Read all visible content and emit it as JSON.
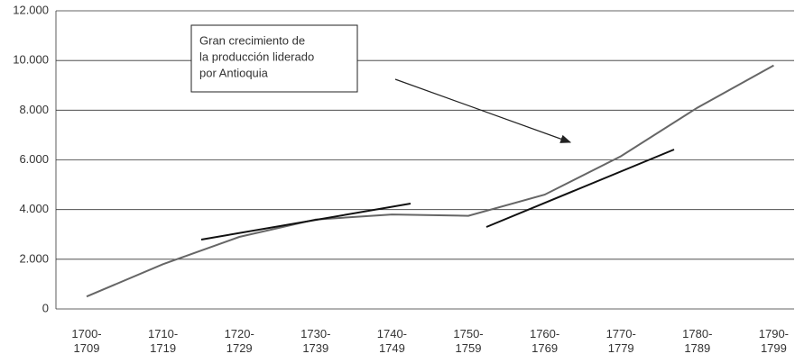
{
  "chart_data": {
    "type": "line",
    "categories": [
      "1700-\n1709",
      "1710-\n1719",
      "1720-\n1729",
      "1730-\n1739",
      "1740-\n1749",
      "1750-\n1759",
      "1760-\n1769",
      "1770-\n1779",
      "1780-\n1789",
      "1790-\n1799"
    ],
    "series": [
      {
        "name": null,
        "color": "#666666",
        "values": [
          500,
          1800,
          2900,
          3600,
          3800,
          3750,
          4600,
          6150,
          8100,
          9800
        ]
      }
    ],
    "ylim": [
      0,
      12000
    ],
    "yticks": [
      0,
      {
        "value": 2000,
        "label": "2.000"
      },
      {
        "value": 4000,
        "label": "4.000"
      },
      {
        "value": 6000,
        "label": "6.000"
      },
      {
        "value": 8000,
        "label": "8.000"
      },
      {
        "value": 10000,
        "label": "10.000"
      },
      {
        "value": 12000,
        "label": "12.000"
      }
    ],
    "grid": true,
    "annotation": [
      "Gran crecimiento de",
      "la producción liderado",
      "por Antioquia"
    ]
  }
}
